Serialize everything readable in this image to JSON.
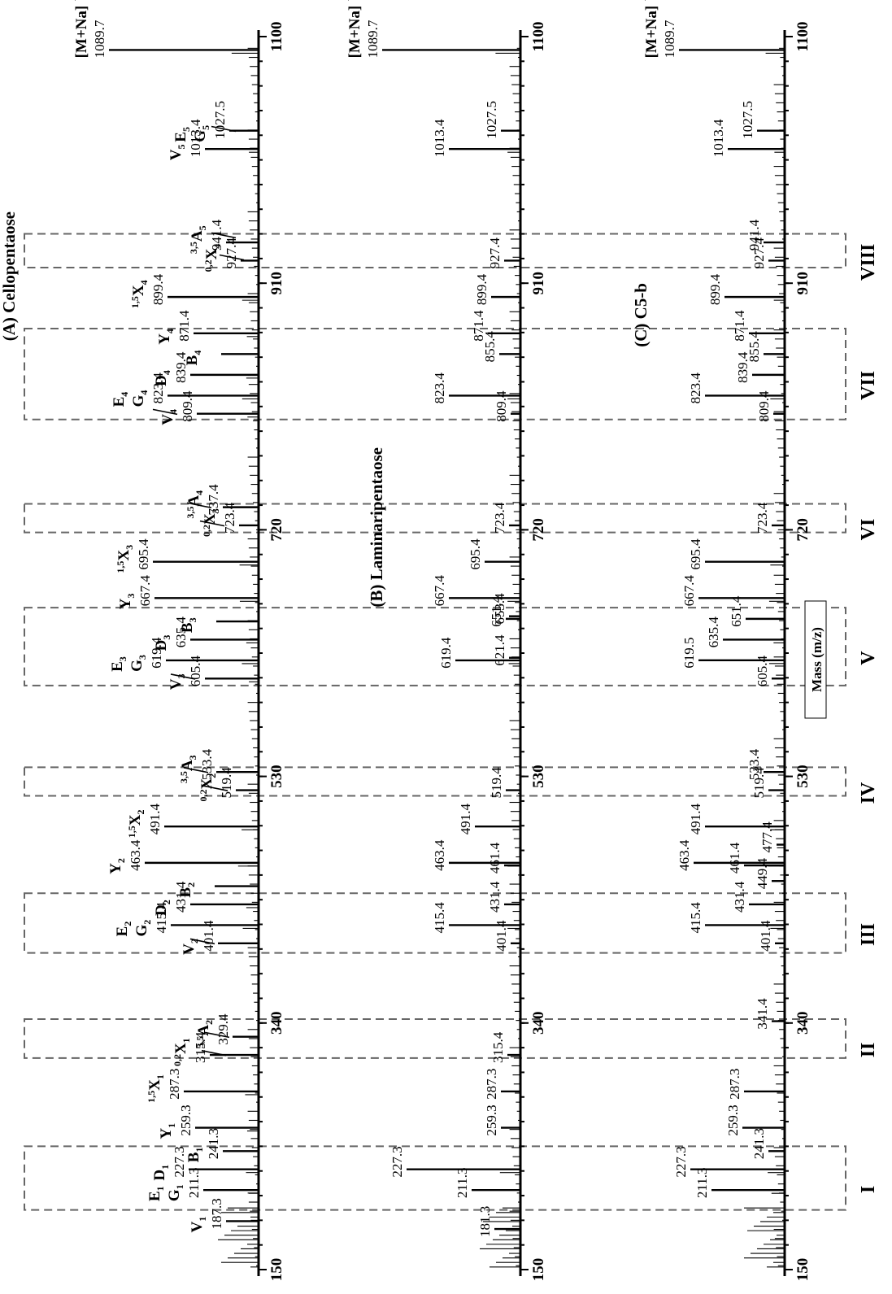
{
  "chart_data": {
    "type": "stick-spectrum",
    "x_axis_label": "Mass (m/z)",
    "x_ticks": [
      150,
      340,
      530,
      720,
      910,
      1100
    ],
    "xlim": [
      150,
      1100
    ],
    "regions": [
      {
        "label": "I",
        "from": 196,
        "to": 245
      },
      {
        "label": "II",
        "from": 313,
        "to": 343
      },
      {
        "label": "III",
        "from": 394,
        "to": 440
      },
      {
        "label": "IV",
        "from": 515,
        "to": 537
      },
      {
        "label": "V",
        "from": 600,
        "to": 660
      },
      {
        "label": "VI",
        "from": 718,
        "to": 740
      },
      {
        "label": "VII",
        "from": 805,
        "to": 875
      },
      {
        "label": "VIII",
        "from": 922,
        "to": 948
      }
    ],
    "panels": [
      {
        "title": "(A) Cellopentaose",
        "peaks": [
          {
            "mz": 187.3,
            "intensity": 0.2,
            "label": "187.3",
            "ion": "V1"
          },
          {
            "mz": 211.3,
            "intensity": 0.34,
            "label": "211.3",
            "ion": "G1 E1"
          },
          {
            "mz": 227.3,
            "intensity": 0.43,
            "label": "227.3",
            "ion": "D1"
          },
          {
            "mz": 241.3,
            "intensity": 0.22,
            "label": "241.3",
            "ion": "B1"
          },
          {
            "mz": 259.3,
            "intensity": 0.39,
            "label": "259.3",
            "ion": "Y1"
          },
          {
            "mz": 287.3,
            "intensity": 0.46,
            "label": "287.3",
            "ion": "1,5X1"
          },
          {
            "mz": 315.4,
            "intensity": 0.3,
            "label": "315.4",
            "ion": "0,2X1"
          },
          {
            "mz": 329.4,
            "intensity": 0.16,
            "label": "329.4",
            "ion": "3,5A2"
          },
          {
            "mz": 401.4,
            "intensity": 0.25,
            "label": "401.4",
            "ion": "V2"
          },
          {
            "mz": 415.4,
            "intensity": 0.54,
            "label": "415.4",
            "ion": "G2 E2"
          },
          {
            "mz": 431.4,
            "intensity": 0.42,
            "label": "431.4",
            "ion": "D2"
          },
          {
            "mz": 445.4,
            "intensity": 0.27,
            "label": "",
            "ion": "B2"
          },
          {
            "mz": 463.4,
            "intensity": 0.7,
            "label": "463.4",
            "ion": "Y2"
          },
          {
            "mz": 491.4,
            "intensity": 0.58,
            "label": "491.4",
            "ion": "1,5X2"
          },
          {
            "mz": 519.4,
            "intensity": 0.14,
            "label": "519.4",
            "ion": "0,2X2"
          },
          {
            "mz": 533.4,
            "intensity": 0.26,
            "label": "533.4",
            "ion": "3,5A3"
          },
          {
            "mz": 605.4,
            "intensity": 0.33,
            "label": "605.4",
            "ion": "V3"
          },
          {
            "mz": 619.4,
            "intensity": 0.57,
            "label": "619.4",
            "ion": "G3 E3"
          },
          {
            "mz": 635.4,
            "intensity": 0.42,
            "label": "635.4",
            "ion": "D3"
          },
          {
            "mz": 649.4,
            "intensity": 0.26,
            "label": "",
            "ion": "B3"
          },
          {
            "mz": 667.4,
            "intensity": 0.64,
            "label": "667.4",
            "ion": "Y3"
          },
          {
            "mz": 695.4,
            "intensity": 0.65,
            "label": "695.4",
            "ion": "1,5X3"
          },
          {
            "mz": 723.4,
            "intensity": 0.12,
            "label": "723.4",
            "ion": "0,2X3"
          },
          {
            "mz": 737.4,
            "intensity": 0.22,
            "label": "737.4",
            "ion": "3,5A4"
          },
          {
            "mz": 809.4,
            "intensity": 0.38,
            "label": "809.4",
            "ion": "V4"
          },
          {
            "mz": 823.4,
            "intensity": 0.56,
            "label": "823.4",
            "ion": "G4 E4"
          },
          {
            "mz": 839.4,
            "intensity": 0.42,
            "label": "839.4",
            "ion": "D4"
          },
          {
            "mz": 855.4,
            "intensity": 0.23,
            "label": "",
            "ion": "B4"
          },
          {
            "mz": 871.4,
            "intensity": 0.4,
            "label": "871.4",
            "ion": "Y4"
          },
          {
            "mz": 899.4,
            "intensity": 0.56,
            "label": "899.4",
            "ion": "1,5X4"
          },
          {
            "mz": 927.4,
            "intensity": 0.11,
            "label": "927.4",
            "ion": "0,2X4"
          },
          {
            "mz": 941.4,
            "intensity": 0.2,
            "label": "941.4",
            "ion": "3,5A5"
          },
          {
            "mz": 1013.4,
            "intensity": 0.33,
            "label": "1013.4",
            "ion": "V5"
          },
          {
            "mz": 1027.5,
            "intensity": 0.18,
            "label": "1027.5",
            "ion": "G5 E5"
          },
          {
            "mz": 1089.7,
            "intensity": 0.92,
            "label": "1089.7",
            "ion": "[M+Na]+"
          }
        ]
      },
      {
        "title": "(B) Laminaripentaose",
        "peaks": [
          {
            "mz": 181.3,
            "intensity": 0.16,
            "label": "181.3"
          },
          {
            "mz": 211.3,
            "intensity": 0.3,
            "label": "211.3"
          },
          {
            "mz": 227.3,
            "intensity": 0.7,
            "label": "227.3"
          },
          {
            "mz": 259.3,
            "intensity": 0.12,
            "label": "259.3"
          },
          {
            "mz": 287.3,
            "intensity": 0.12,
            "label": "287.3"
          },
          {
            "mz": 315.4,
            "intensity": 0.08,
            "label": "315.4"
          },
          {
            "mz": 401.4,
            "intensity": 0.06,
            "label": "401.4"
          },
          {
            "mz": 415.4,
            "intensity": 0.44,
            "label": "415.4"
          },
          {
            "mz": 431.4,
            "intensity": 0.1,
            "label": "431.4"
          },
          {
            "mz": 461.4,
            "intensity": 0.1,
            "label": "461.4"
          },
          {
            "mz": 463.4,
            "intensity": 0.44,
            "label": "463.4"
          },
          {
            "mz": 491.4,
            "intensity": 0.28,
            "label": "491.4"
          },
          {
            "mz": 519.4,
            "intensity": 0.09,
            "label": "519.4"
          },
          {
            "mz": 619.4,
            "intensity": 0.4,
            "label": "619.4"
          },
          {
            "mz": 621.4,
            "intensity": 0.07,
            "label": "621.4"
          },
          {
            "mz": 651.4,
            "intensity": 0.09,
            "label": "651.4"
          },
          {
            "mz": 653.4,
            "intensity": 0.07,
            "label": "653.4"
          },
          {
            "mz": 667.4,
            "intensity": 0.44,
            "label": "667.4"
          },
          {
            "mz": 695.4,
            "intensity": 0.22,
            "label": "695.4"
          },
          {
            "mz": 723.4,
            "intensity": 0.07,
            "label": "723.4"
          },
          {
            "mz": 809.4,
            "intensity": 0.06,
            "label": "809.4"
          },
          {
            "mz": 823.4,
            "intensity": 0.44,
            "label": "823.4"
          },
          {
            "mz": 855.4,
            "intensity": 0.13,
            "label": "855.4"
          },
          {
            "mz": 871.4,
            "intensity": 0.2,
            "label": "871.4"
          },
          {
            "mz": 899.4,
            "intensity": 0.18,
            "label": "899.4"
          },
          {
            "mz": 927.4,
            "intensity": 0.1,
            "label": "927.4"
          },
          {
            "mz": 1013.4,
            "intensity": 0.44,
            "label": "1013.4"
          },
          {
            "mz": 1027.5,
            "intensity": 0.12,
            "label": "1027.5"
          },
          {
            "mz": 1089.7,
            "intensity": 0.85,
            "label": "1089.7",
            "ion": "[M+Na]+"
          }
        ]
      },
      {
        "title": "(C) C5-b",
        "peaks": [
          {
            "mz": 211.3,
            "intensity": 0.45,
            "label": "211.3"
          },
          {
            "mz": 227.3,
            "intensity": 0.58,
            "label": "227.3"
          },
          {
            "mz": 241.3,
            "intensity": 0.1,
            "label": "241.3"
          },
          {
            "mz": 259.3,
            "intensity": 0.26,
            "label": "259.3"
          },
          {
            "mz": 287.3,
            "intensity": 0.25,
            "label": "287.3"
          },
          {
            "mz": 341.4,
            "intensity": 0.08,
            "label": "341.4"
          },
          {
            "mz": 401.4,
            "intensity": 0.06,
            "label": "401.4"
          },
          {
            "mz": 415.4,
            "intensity": 0.49,
            "label": "415.4"
          },
          {
            "mz": 431.4,
            "intensity": 0.22,
            "label": "431.4"
          },
          {
            "mz": 449.4,
            "intensity": 0.08,
            "label": "449.4"
          },
          {
            "mz": 461.4,
            "intensity": 0.25,
            "label": "461.4"
          },
          {
            "mz": 463.4,
            "intensity": 0.56,
            "label": "463.4"
          },
          {
            "mz": 477.4,
            "intensity": 0.05,
            "label": "477.4"
          },
          {
            "mz": 491.4,
            "intensity": 0.49,
            "label": "491.4"
          },
          {
            "mz": 519.4,
            "intensity": 0.1,
            "label": "519.4"
          },
          {
            "mz": 533.4,
            "intensity": 0.13,
            "label": "533.4"
          },
          {
            "mz": 605.4,
            "intensity": 0.08,
            "label": "605.4"
          },
          {
            "mz": 619.5,
            "intensity": 0.53,
            "label": "619.5"
          },
          {
            "mz": 635.4,
            "intensity": 0.38,
            "label": "635.4"
          },
          {
            "mz": 651.4,
            "intensity": 0.24,
            "label": "651.4"
          },
          {
            "mz": 667.4,
            "intensity": 0.53,
            "label": "667.4"
          },
          {
            "mz": 695.4,
            "intensity": 0.49,
            "label": "695.4"
          },
          {
            "mz": 723.4,
            "intensity": 0.08,
            "label": "723.4"
          },
          {
            "mz": 809.4,
            "intensity": 0.07,
            "label": "809.4"
          },
          {
            "mz": 823.4,
            "intensity": 0.49,
            "label": "823.4"
          },
          {
            "mz": 839.4,
            "intensity": 0.2,
            "label": "839.4"
          },
          {
            "mz": 855.4,
            "intensity": 0.13,
            "label": "855.4"
          },
          {
            "mz": 871.4,
            "intensity": 0.22,
            "label": "871.4"
          },
          {
            "mz": 899.4,
            "intensity": 0.37,
            "label": "899.4"
          },
          {
            "mz": 927.4,
            "intensity": 0.1,
            "label": "927.4"
          },
          {
            "mz": 941.4,
            "intensity": 0.13,
            "label": "941.4"
          },
          {
            "mz": 1013.4,
            "intensity": 0.35,
            "label": "1013.4"
          },
          {
            "mz": 1027.5,
            "intensity": 0.17,
            "label": "1027.5"
          },
          {
            "mz": 1089.7,
            "intensity": 0.65,
            "label": "1089.7",
            "ion": "[M+Na]+"
          }
        ]
      }
    ]
  }
}
